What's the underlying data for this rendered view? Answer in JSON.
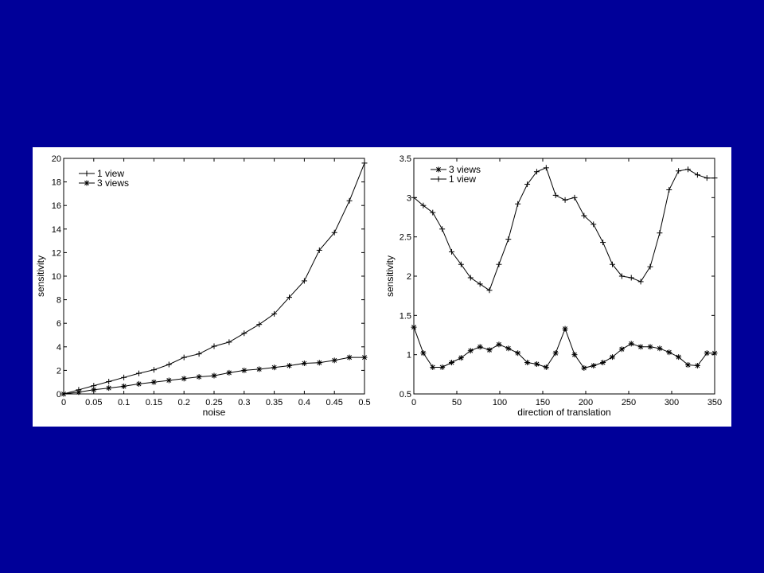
{
  "colors": {
    "slide_background": "#000099",
    "panel_background": "#ffffff",
    "ink": "#000000"
  },
  "chart_data": [
    {
      "type": "line",
      "title": "",
      "xlabel": "noise",
      "ylabel": "sensitivity",
      "xlim": [
        0,
        0.5
      ],
      "ylim": [
        0,
        20
      ],
      "x_ticks": [
        "0",
        "0.05",
        "0.1",
        "0.15",
        "0.2",
        "0.25",
        "0.3",
        "0.35",
        "0.4",
        "0.45",
        "0.5"
      ],
      "y_ticks": [
        "0",
        "2",
        "4",
        "6",
        "8",
        "10",
        "12",
        "14",
        "16",
        "18",
        "20"
      ],
      "grid": false,
      "legend_position": "top-left",
      "x": [
        0,
        0.025,
        0.05,
        0.075,
        0.1,
        0.125,
        0.15,
        0.175,
        0.2,
        0.225,
        0.25,
        0.275,
        0.3,
        0.325,
        0.35,
        0.375,
        0.4,
        0.425,
        0.45,
        0.475,
        0.5
      ],
      "series": [
        {
          "name": "1 view",
          "marker": "plus",
          "values": [
            0,
            0.35,
            0.7,
            1.05,
            1.4,
            1.75,
            2.05,
            2.5,
            3.1,
            3.4,
            4.05,
            4.4,
            5.15,
            5.9,
            6.8,
            8.2,
            9.6,
            12.2,
            13.7,
            16.4,
            19.6
          ]
        },
        {
          "name": "3 views",
          "marker": "star",
          "values": [
            0,
            0.15,
            0.35,
            0.5,
            0.65,
            0.85,
            1.0,
            1.15,
            1.3,
            1.45,
            1.55,
            1.8,
            2.0,
            2.1,
            2.25,
            2.4,
            2.6,
            2.65,
            2.85,
            3.1,
            3.1
          ]
        }
      ]
    },
    {
      "type": "line",
      "title": "",
      "xlabel": "direction of translation",
      "ylabel": "sensitivity",
      "xlim": [
        0,
        350
      ],
      "ylim": [
        0.5,
        3.5
      ],
      "x_ticks": [
        "0",
        "50",
        "100",
        "150",
        "200",
        "250",
        "300",
        "350"
      ],
      "y_ticks": [
        "0.5",
        "1",
        "1.5",
        "2",
        "2.5",
        "3",
        "3.5"
      ],
      "grid": false,
      "legend_position": "top-left",
      "x": [
        0,
        11,
        22,
        33,
        44,
        55,
        66,
        77,
        88,
        99,
        110,
        121,
        132,
        143,
        154,
        165,
        176,
        187,
        198,
        209,
        220,
        231,
        242,
        253,
        264,
        275,
        286,
        297,
        308,
        319,
        330,
        341,
        350
      ],
      "series": [
        {
          "name": "3 views",
          "marker": "star",
          "values": [
            1.35,
            1.02,
            0.84,
            0.84,
            0.9,
            0.96,
            1.05,
            1.1,
            1.06,
            1.13,
            1.08,
            1.02,
            0.9,
            0.88,
            0.84,
            1.02,
            1.33,
            1.0,
            0.83,
            0.86,
            0.9,
            0.97,
            1.07,
            1.14,
            1.1,
            1.1,
            1.08,
            1.03,
            0.97,
            0.87,
            0.86,
            1.02,
            1.02
          ]
        },
        {
          "name": "1 view",
          "marker": "plus",
          "values": [
            3.0,
            2.9,
            2.81,
            2.6,
            2.31,
            2.15,
            1.98,
            1.9,
            1.82,
            2.15,
            2.47,
            2.92,
            3.17,
            3.33,
            3.38,
            3.03,
            2.97,
            3.0,
            2.77,
            2.66,
            2.43,
            2.15,
            2.0,
            1.98,
            1.93,
            2.12,
            2.55,
            3.1,
            3.34,
            3.36,
            3.29,
            3.25,
            3.25
          ]
        }
      ]
    }
  ]
}
